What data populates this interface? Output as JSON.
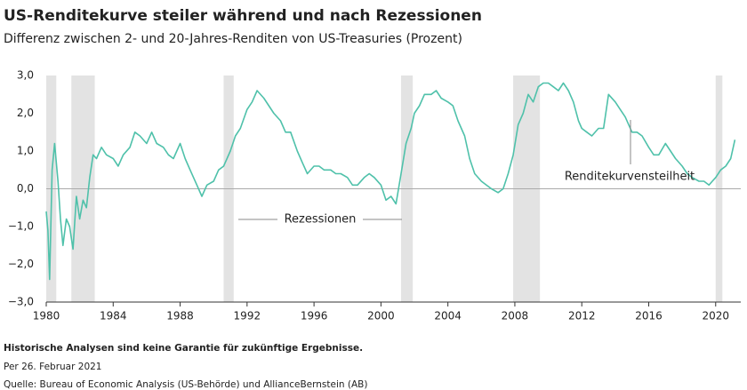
{
  "chart_data": {
    "type": "line",
    "title": "US-Renditekurve steiler während und nach Rezessionen",
    "subtitle": "Differenz zwischen 2- und 20-Jahres-Renditen von US-Treasuries (Prozent)",
    "x": [
      1980.0,
      1980.1,
      1980.2,
      1980.35,
      1980.5,
      1980.7,
      1980.85,
      1981.0,
      1981.2,
      1981.4,
      1981.6,
      1981.8,
      1982.0,
      1982.2,
      1982.4,
      1982.6,
      1982.8,
      1983.0,
      1983.3,
      1983.6,
      1984.0,
      1984.3,
      1984.6,
      1985.0,
      1985.3,
      1985.6,
      1986.0,
      1986.3,
      1986.6,
      1987.0,
      1987.3,
      1987.6,
      1988.0,
      1988.3,
      1988.6,
      1989.0,
      1989.3,
      1989.6,
      1990.0,
      1990.3,
      1990.6,
      1991.0,
      1991.3,
      1991.6,
      1992.0,
      1992.3,
      1992.6,
      1993.0,
      1993.3,
      1993.6,
      1994.0,
      1994.3,
      1994.6,
      1995.0,
      1995.3,
      1995.6,
      1996.0,
      1996.3,
      1996.6,
      1997.0,
      1997.3,
      1997.6,
      1998.0,
      1998.3,
      1998.6,
      1999.0,
      1999.3,
      1999.6,
      2000.0,
      2000.3,
      2000.6,
      2000.9,
      2001.2,
      2001.5,
      2001.8,
      2002.0,
      2002.3,
      2002.6,
      2003.0,
      2003.3,
      2003.6,
      2004.0,
      2004.3,
      2004.6,
      2005.0,
      2005.3,
      2005.6,
      2006.0,
      2006.3,
      2006.6,
      2007.0,
      2007.3,
      2007.6,
      2007.9,
      2008.2,
      2008.5,
      2008.8,
      2009.1,
      2009.4,
      2009.7,
      2010.0,
      2010.3,
      2010.6,
      2010.9,
      2011.2,
      2011.5,
      2011.8,
      2012.0,
      2012.3,
      2012.6,
      2013.0,
      2013.3,
      2013.6,
      2014.0,
      2014.3,
      2014.6,
      2015.0,
      2015.3,
      2015.6,
      2016.0,
      2016.3,
      2016.6,
      2017.0,
      2017.3,
      2017.6,
      2018.0,
      2018.3,
      2018.6,
      2019.0,
      2019.3,
      2019.6,
      2019.8,
      2020.0,
      2020.3,
      2020.6,
      2020.9,
      2021.15
    ],
    "series": [
      {
        "color": "#4fc1aa",
        "values": [
          -0.6,
          -1.1,
          -2.4,
          0.5,
          1.2,
          0.2,
          -0.8,
          -1.5,
          -0.8,
          -1.0,
          -1.6,
          -0.2,
          -0.8,
          -0.3,
          -0.5,
          0.3,
          0.9,
          0.8,
          1.1,
          0.9,
          0.8,
          0.6,
          0.9,
          1.1,
          1.5,
          1.4,
          1.2,
          1.5,
          1.2,
          1.1,
          0.9,
          0.8,
          1.2,
          0.8,
          0.5,
          0.1,
          -0.2,
          0.1,
          0.2,
          0.5,
          0.6,
          1.0,
          1.4,
          1.6,
          2.1,
          2.3,
          2.6,
          2.4,
          2.2,
          2.0,
          1.8,
          1.5,
          1.5,
          1.0,
          0.7,
          0.4,
          0.6,
          0.6,
          0.5,
          0.5,
          0.4,
          0.4,
          0.3,
          0.1,
          0.1,
          0.3,
          0.4,
          0.3,
          0.1,
          -0.3,
          -0.2,
          -0.4,
          0.4,
          1.2,
          1.6,
          2.0,
          2.2,
          2.5,
          2.5,
          2.6,
          2.4,
          2.3,
          2.2,
          1.8,
          1.4,
          0.8,
          0.4,
          0.2,
          0.1,
          0.0,
          -0.1,
          0.0,
          0.4,
          0.9,
          1.7,
          2.0,
          2.5,
          2.3,
          2.7,
          2.8,
          2.8,
          2.7,
          2.6,
          2.8,
          2.6,
          2.3,
          1.8,
          1.6,
          1.5,
          1.4,
          1.6,
          1.6,
          2.5,
          2.3,
          2.1,
          1.9,
          1.5,
          1.5,
          1.4,
          1.1,
          0.9,
          0.9,
          1.2,
          1.0,
          0.8,
          0.6,
          0.4,
          0.3,
          0.2,
          0.2,
          0.1,
          0.2,
          0.3,
          0.5,
          0.6,
          0.8,
          1.3
        ]
      }
    ],
    "recessions": [
      [
        1980.0,
        1980.6
      ],
      [
        1981.5,
        1982.9
      ],
      [
        1990.6,
        1991.2
      ],
      [
        2001.2,
        2001.9
      ],
      [
        2007.9,
        2009.5
      ],
      [
        2020.0,
        2020.4
      ]
    ],
    "recession_label": "Rezessionen",
    "curve_label": "Renditekurvensteilheit",
    "xlim": [
      1980,
      2021.5
    ],
    "xticks": [
      1980,
      1984,
      1988,
      1992,
      1996,
      2000,
      2004,
      2008,
      2012,
      2016,
      2020
    ],
    "ylim": [
      -3,
      3
    ],
    "yticks": [
      {
        "value": -3,
        "label": "−3,0"
      },
      {
        "value": -2,
        "label": "−2,0"
      },
      {
        "value": -1,
        "label": "−1,0"
      },
      {
        "value": 0,
        "label": "0,0"
      },
      {
        "value": 1,
        "label": "1,0"
      },
      {
        "value": 2,
        "label": "2,0"
      },
      {
        "value": 3,
        "label": "3,0"
      }
    ],
    "footnotes": [
      "Historische Analysen sind keine Garantie für zukünftige Ergebnisse.",
      "Per 26. Februar 2021",
      "Quelle: Bureau of Economic Analysis (US-Behörde) und AllianceBernstein (AB)"
    ]
  }
}
